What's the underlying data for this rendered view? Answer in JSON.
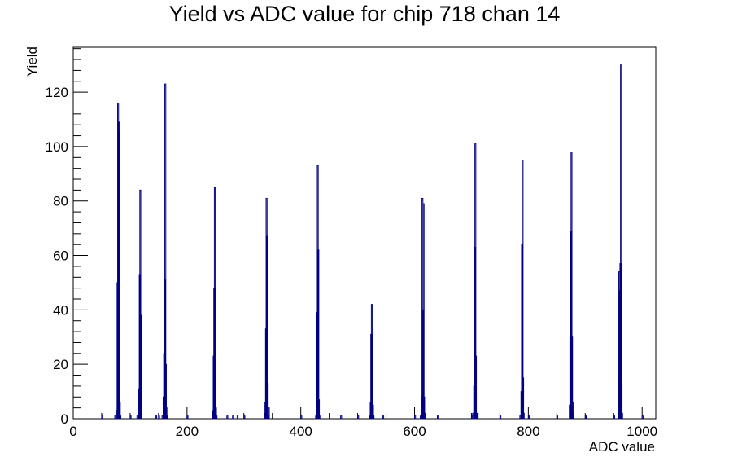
{
  "chart_data": {
    "type": "bar",
    "title": "Yield vs ADC value for chip 718 chan 14",
    "xlabel": "ADC value",
    "ylabel": "Yield",
    "xlim": [
      0,
      1024
    ],
    "ylim": [
      0,
      136.5
    ],
    "x_ticks": [
      0,
      200,
      400,
      600,
      800,
      1000
    ],
    "y_ticks": [
      0,
      20,
      40,
      60,
      80,
      100,
      120
    ],
    "grid": false,
    "legend": "none",
    "series_color": "#000080",
    "bins": [
      [
        50,
        1
      ],
      [
        73,
        1
      ],
      [
        75,
        3
      ],
      [
        77,
        50
      ],
      [
        78,
        116
      ],
      [
        79,
        109
      ],
      [
        80,
        105
      ],
      [
        81,
        6
      ],
      [
        82,
        1
      ],
      [
        100,
        1
      ],
      [
        112,
        1
      ],
      [
        115,
        11
      ],
      [
        116,
        53
      ],
      [
        117,
        84
      ],
      [
        118,
        38
      ],
      [
        119,
        5
      ],
      [
        145,
        1
      ],
      [
        150,
        1
      ],
      [
        156,
        1
      ],
      [
        158,
        8
      ],
      [
        159,
        24
      ],
      [
        160,
        51
      ],
      [
        161,
        123
      ],
      [
        162,
        20
      ],
      [
        163,
        4
      ],
      [
        164,
        1
      ],
      [
        200,
        1
      ],
      [
        245,
        3
      ],
      [
        246,
        23
      ],
      [
        247,
        48
      ],
      [
        248,
        85
      ],
      [
        249,
        16
      ],
      [
        250,
        4
      ],
      [
        251,
        1
      ],
      [
        270,
        1
      ],
      [
        280,
        1
      ],
      [
        288,
        1
      ],
      [
        300,
        1
      ],
      [
        336,
        2
      ],
      [
        337,
        6
      ],
      [
        338,
        33
      ],
      [
        339,
        81
      ],
      [
        340,
        67
      ],
      [
        341,
        13
      ],
      [
        342,
        1
      ],
      [
        343,
        4
      ],
      [
        400,
        1
      ],
      [
        426,
        1
      ],
      [
        427,
        38
      ],
      [
        428,
        39
      ],
      [
        429,
        93
      ],
      [
        430,
        62
      ],
      [
        431,
        7
      ],
      [
        432,
        1
      ],
      [
        470,
        1
      ],
      [
        500,
        1
      ],
      [
        521,
        1
      ],
      [
        522,
        6
      ],
      [
        523,
        31
      ],
      [
        524,
        42
      ],
      [
        525,
        31
      ],
      [
        526,
        5
      ],
      [
        527,
        1
      ],
      [
        544,
        1
      ],
      [
        600,
        1
      ],
      [
        610,
        1
      ],
      [
        612,
        8
      ],
      [
        613,
        81
      ],
      [
        614,
        40
      ],
      [
        615,
        79
      ],
      [
        616,
        8
      ],
      [
        617,
        2
      ],
      [
        640,
        1
      ],
      [
        700,
        1
      ],
      [
        702,
        2
      ],
      [
        704,
        12
      ],
      [
        705,
        63
      ],
      [
        706,
        101
      ],
      [
        707,
        23
      ],
      [
        708,
        1
      ],
      [
        710,
        2
      ],
      [
        750,
        1
      ],
      [
        785,
        1
      ],
      [
        787,
        10
      ],
      [
        788,
        64
      ],
      [
        789,
        95
      ],
      [
        790,
        15
      ],
      [
        791,
        2
      ],
      [
        800,
        1
      ],
      [
        850,
        1
      ],
      [
        872,
        5
      ],
      [
        873,
        30
      ],
      [
        874,
        69
      ],
      [
        875,
        98
      ],
      [
        876,
        30
      ],
      [
        877,
        6
      ],
      [
        878,
        2
      ],
      [
        900,
        1
      ],
      [
        950,
        1
      ],
      [
        958,
        14
      ],
      [
        959,
        54
      ],
      [
        960,
        47
      ],
      [
        961,
        57
      ],
      [
        962,
        130
      ],
      [
        963,
        13
      ],
      [
        964,
        2
      ],
      [
        1000,
        1
      ]
    ]
  }
}
